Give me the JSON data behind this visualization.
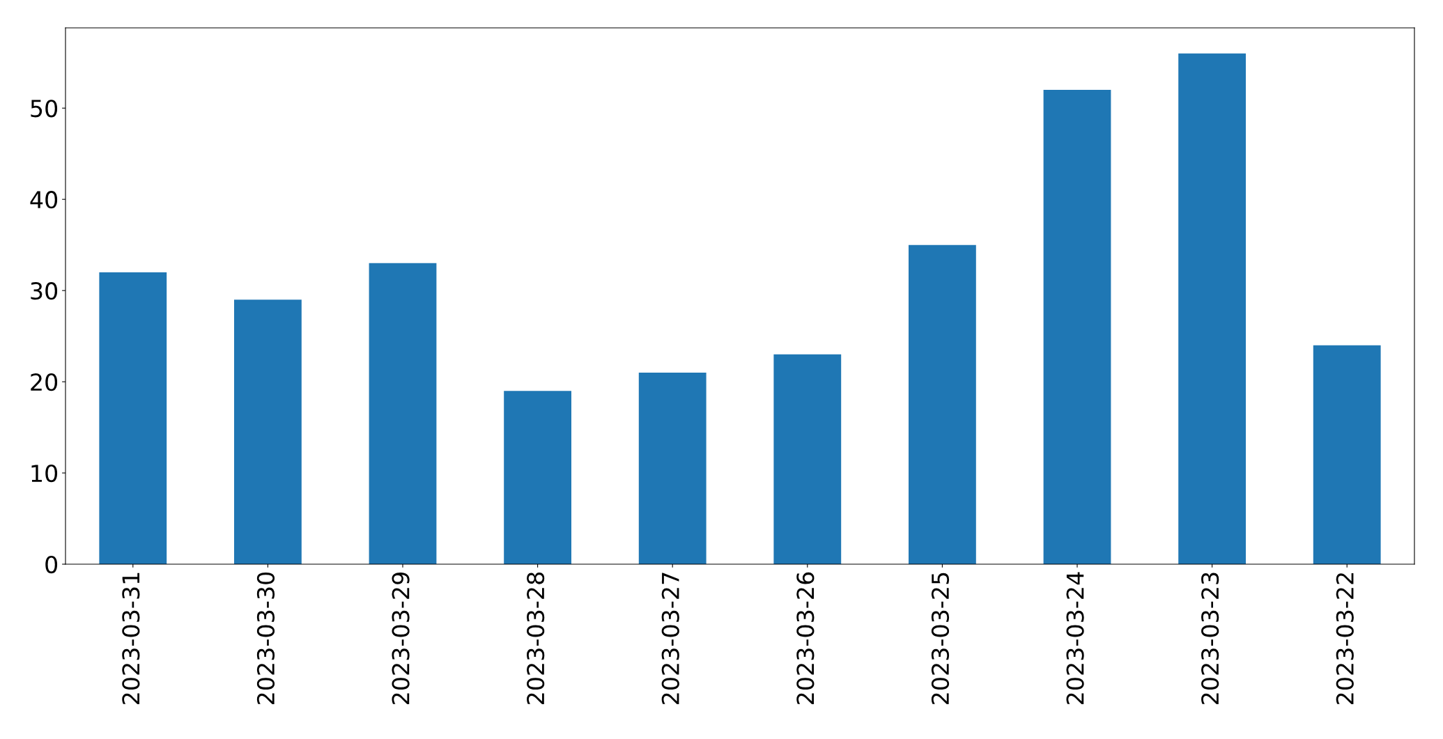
{
  "chart_data": {
    "type": "bar",
    "categories": [
      "2023-03-31",
      "2023-03-30",
      "2023-03-29",
      "2023-03-28",
      "2023-03-27",
      "2023-03-26",
      "2023-03-25",
      "2023-03-24",
      "2023-03-23",
      "2023-03-22"
    ],
    "values": [
      32,
      29,
      33,
      19,
      21,
      23,
      35,
      52,
      56,
      24
    ],
    "color": "#1f77b4",
    "ylim": [
      0,
      58.8
    ],
    "yticks": [
      0,
      10,
      20,
      30,
      40,
      50
    ],
    "grid": false,
    "legend": false
  }
}
